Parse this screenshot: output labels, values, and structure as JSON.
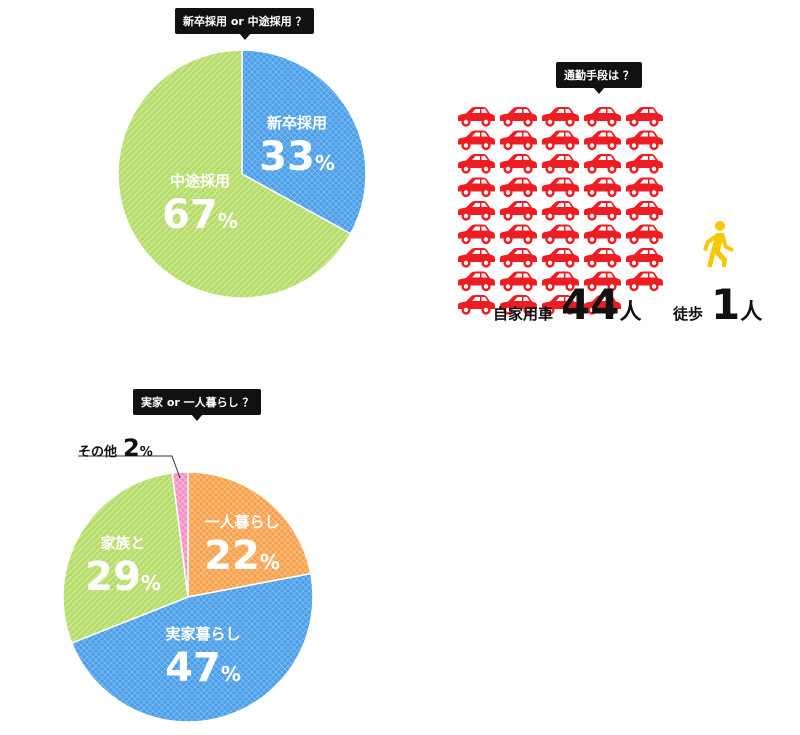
{
  "hiring": {
    "question": "新卒採用 or 中途採用 ？",
    "pct_sign": "%",
    "slices": [
      {
        "label": "新卒採用",
        "value": 33,
        "color": "#4a9ee8"
      },
      {
        "label": "中途採用",
        "value": 67,
        "color": "#b6dc6c"
      }
    ]
  },
  "commute": {
    "question": "通勤手段は ？",
    "car": {
      "label": "自家用車",
      "count": "44",
      "unit": "人",
      "icon": "car-icon",
      "color": "#ee1d23"
    },
    "walk": {
      "label": "徒歩",
      "count": "1",
      "unit": "人",
      "icon": "walking-person-icon",
      "color": "#f5c800"
    }
  },
  "living": {
    "question": "実家 or 一人暮らし ？",
    "pct_sign": "%",
    "slices": [
      {
        "label": "一人暮らし",
        "value": 22,
        "color": "#f7a04a"
      },
      {
        "label": "実家暮らし",
        "value": 47,
        "color": "#4a9ee8"
      },
      {
        "label": "家族と",
        "value": 29,
        "color": "#b6dc6c"
      },
      {
        "label": "その他",
        "value": 2,
        "color": "#f58fc3"
      }
    ]
  },
  "chart_data": [
    {
      "type": "pie",
      "categories": [
        "新卒採用",
        "中途採用"
      ],
      "values": [
        33,
        67
      ]
    },
    {
      "type": "pictogram",
      "categories": [
        "自家用車",
        "徒歩"
      ],
      "values": [
        44,
        1
      ]
    },
    {
      "type": "pie",
      "categories": [
        "一人暮らし",
        "実家暮らし",
        "家族と",
        "その他"
      ],
      "values": [
        22,
        47,
        29,
        2
      ]
    }
  ]
}
